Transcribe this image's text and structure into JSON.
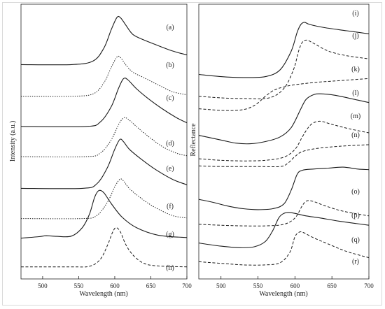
{
  "chart_data": [
    {
      "type": "line",
      "panel": "left",
      "xlabel": "Wavelength (nm)",
      "ylabel": "Intensity (a.u.)",
      "xlim": [
        470,
        700
      ],
      "xticks": [
        500,
        550,
        600,
        650,
        700
      ],
      "y_units": "arbitrary (stacked curves)",
      "series": [
        {
          "name": "(a)",
          "style": "solid",
          "baseline": 6.8,
          "x": [
            470,
            540,
            570,
            585,
            595,
            603,
            608,
            615,
            625,
            640,
            660,
            680,
            700
          ],
          "y": [
            0,
            0,
            0.12,
            0.55,
            1.15,
            1.56,
            1.55,
            1.32,
            1.0,
            0.82,
            0.63,
            0.45,
            0.32
          ]
        },
        {
          "name": "(b)",
          "style": "dotted",
          "baseline": 5.75,
          "x": [
            470,
            540,
            570,
            585,
            595,
            603,
            608,
            615,
            625,
            640,
            660,
            680,
            700
          ],
          "y": [
            0,
            0,
            0.08,
            0.45,
            0.95,
            1.3,
            1.28,
            1.05,
            0.8,
            0.62,
            0.38,
            0.15,
            0.05
          ]
        },
        {
          "name": "(c)",
          "style": "solid",
          "baseline": 4.75,
          "x": [
            470,
            560,
            580,
            595,
            605,
            612,
            618,
            630,
            645,
            665,
            685,
            700
          ],
          "y": [
            0,
            0,
            0.15,
            0.65,
            1.25,
            1.58,
            1.55,
            1.25,
            0.95,
            0.6,
            0.3,
            0.12
          ]
        },
        {
          "name": "(d)",
          "style": "dotted",
          "baseline": 3.75,
          "x": [
            470,
            560,
            580,
            595,
            605,
            612,
            618,
            630,
            645,
            665,
            685,
            700
          ],
          "y": [
            0,
            0,
            0.12,
            0.55,
            1.05,
            1.28,
            1.25,
            1.0,
            0.7,
            0.35,
            0.12,
            0.03
          ]
        },
        {
          "name": "(e)",
          "style": "solid",
          "baseline": 2.7,
          "x": [
            470,
            555,
            575,
            590,
            600,
            607,
            612,
            620,
            635,
            655,
            680,
            700
          ],
          "y": [
            0,
            0,
            0.15,
            0.7,
            1.3,
            1.62,
            1.55,
            1.3,
            1.0,
            0.65,
            0.3,
            0.12
          ]
        },
        {
          "name": "(f)",
          "style": "dotted",
          "baseline": 1.7,
          "x": [
            470,
            555,
            575,
            590,
            600,
            607,
            612,
            620,
            635,
            655,
            680,
            700
          ],
          "y": [
            0,
            0,
            0.1,
            0.55,
            1.05,
            1.3,
            1.25,
            1.0,
            0.7,
            0.38,
            0.1,
            0.02
          ]
        },
        {
          "name": "(g)",
          "style": "solid",
          "baseline": 1.05,
          "x": [
            470,
            495,
            505,
            520,
            540,
            555,
            565,
            572,
            578,
            585,
            595,
            610,
            630,
            660,
            700
          ],
          "y": [
            0,
            0.05,
            0.08,
            0.06,
            0.07,
            0.35,
            0.8,
            1.35,
            1.58,
            1.5,
            1.15,
            0.7,
            0.35,
            0.1,
            0.02
          ]
        },
        {
          "name": "(h)",
          "style": "dashed",
          "baseline": 0.1,
          "x": [
            470,
            540,
            565,
            580,
            590,
            597,
            602,
            608,
            615,
            625,
            640,
            660,
            700
          ],
          "y": [
            0,
            0,
            0.02,
            0.25,
            0.72,
            1.15,
            1.3,
            1.15,
            0.75,
            0.4,
            0.12,
            0.03,
            0.0
          ]
        }
      ]
    },
    {
      "type": "line",
      "panel": "right",
      "xlabel": "Wavelength (nm)",
      "ylabel": "Reflectance",
      "xlim": [
        470,
        700
      ],
      "xticks": [
        500,
        550,
        600,
        650,
        700
      ],
      "y_units": "arbitrary (stacked curves)",
      "series": [
        {
          "name": "(i)",
          "style": "solid",
          "x": [
            470,
            500,
            530,
            560,
            580,
            595,
            603,
            608,
            613,
            620,
            640,
            670,
            700
          ],
          "y": [
            6.55,
            6.48,
            6.45,
            6.48,
            6.7,
            7.3,
            7.9,
            8.15,
            8.22,
            8.15,
            8.05,
            7.95,
            7.85
          ]
        },
        {
          "name": "(j)",
          "style": "dashed",
          "x": [
            470,
            500,
            530,
            565,
            585,
            598,
            605,
            610,
            616,
            625,
            645,
            670,
            700
          ],
          "y": [
            5.85,
            5.8,
            5.78,
            5.8,
            6.1,
            6.7,
            7.3,
            7.58,
            7.65,
            7.55,
            7.3,
            7.15,
            7.05
          ]
        },
        {
          "name": "(k)",
          "style": "dashed",
          "x": [
            470,
            500,
            520,
            535,
            548,
            560,
            572,
            585,
            600,
            630,
            660,
            700
          ],
          "y": [
            5.45,
            5.4,
            5.4,
            5.45,
            5.6,
            5.85,
            6.05,
            6.15,
            6.22,
            6.3,
            6.35,
            6.42
          ]
        },
        {
          "name": "(l)",
          "style": "solid",
          "x": [
            470,
            500,
            520,
            540,
            560,
            580,
            595,
            608,
            615,
            625,
            635,
            655,
            675,
            700
          ],
          "y": [
            4.6,
            4.45,
            4.35,
            4.33,
            4.4,
            4.55,
            4.85,
            5.45,
            5.75,
            5.9,
            5.93,
            5.88,
            5.78,
            5.65
          ]
        },
        {
          "name": "(m)",
          "style": "dashed",
          "x": [
            470,
            500,
            530,
            560,
            585,
            600,
            610,
            618,
            625,
            635,
            650,
            675,
            700
          ],
          "y": [
            3.85,
            3.8,
            3.78,
            3.8,
            3.9,
            4.15,
            4.55,
            4.85,
            5.0,
            5.05,
            4.95,
            4.8,
            4.68
          ]
        },
        {
          "name": "(n)",
          "style": "dashed",
          "x": [
            470,
            500,
            550,
            580,
            590,
            600,
            610,
            630,
            660,
            700
          ],
          "y": [
            3.62,
            3.6,
            3.6,
            3.6,
            3.7,
            3.92,
            4.08,
            4.18,
            4.25,
            4.3
          ]
        },
        {
          "name": "(o)",
          "style": "solid",
          "x": [
            470,
            490,
            510,
            530,
            550,
            570,
            585,
            595,
            603,
            610,
            625,
            645,
            665,
            685,
            700
          ],
          "y": [
            2.55,
            2.45,
            2.33,
            2.25,
            2.22,
            2.25,
            2.4,
            2.85,
            3.35,
            3.48,
            3.52,
            3.55,
            3.58,
            3.52,
            3.5
          ]
        },
        {
          "name": "(p)",
          "style": "dashed",
          "x": [
            470,
            500,
            530,
            560,
            585,
            600,
            610,
            616,
            625,
            640,
            660,
            680,
            700
          ],
          "y": [
            1.75,
            1.72,
            1.7,
            1.7,
            1.75,
            1.95,
            2.35,
            2.5,
            2.48,
            2.35,
            2.2,
            2.1,
            2.02
          ]
        },
        {
          "name": "(q)",
          "style": "solid",
          "x": [
            470,
            500,
            525,
            545,
            560,
            570,
            578,
            585,
            592,
            600,
            615,
            635,
            660,
            700
          ],
          "y": [
            1.15,
            1.05,
            1.0,
            1.03,
            1.2,
            1.55,
            1.95,
            2.1,
            2.13,
            2.1,
            2.02,
            1.95,
            1.85,
            1.72
          ]
        },
        {
          "name": "(r)",
          "style": "dashed",
          "x": [
            470,
            500,
            530,
            560,
            580,
            593,
            600,
            606,
            612,
            625,
            645,
            670,
            700
          ],
          "y": [
            0.55,
            0.5,
            0.45,
            0.45,
            0.52,
            0.85,
            1.35,
            1.5,
            1.48,
            1.32,
            1.12,
            0.88,
            0.68
          ]
        }
      ]
    }
  ]
}
